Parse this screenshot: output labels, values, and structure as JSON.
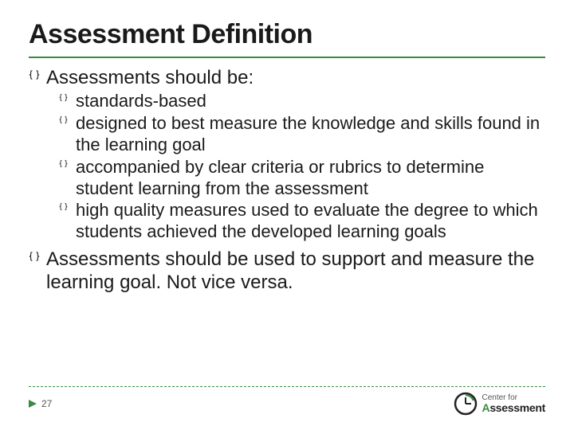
{
  "slide": {
    "title": "Assessment Definition",
    "title_fontsize": 34,
    "title_color": "#1a1a1a",
    "rule_color": "#3a8a3f",
    "rule_height": 2,
    "bullet_color": "#333333",
    "top_fontsize": 24,
    "sub_fontsize": 22,
    "top_items": [
      {
        "text": "Assessments should be:",
        "sub": [
          "standards-based",
          "designed to best measure the knowledge and skills found in the learning goal",
          "accompanied by clear criteria or rubrics to determine student learning from the assessment",
          "high quality measures used to evaluate the degree to which students achieved the developed learning goals"
        ]
      },
      {
        "text": "Assessments should be used to support and measure the learning goal. Not vice versa.",
        "sub": []
      }
    ]
  },
  "footer": {
    "dashed_color": "#3a8a3f",
    "triangle_color": "#3a8a3f",
    "page_number": "27",
    "logo": {
      "accent": "#3a8a3f",
      "dark": "#222222",
      "line1": "Center for",
      "line2": "Assessment"
    }
  }
}
